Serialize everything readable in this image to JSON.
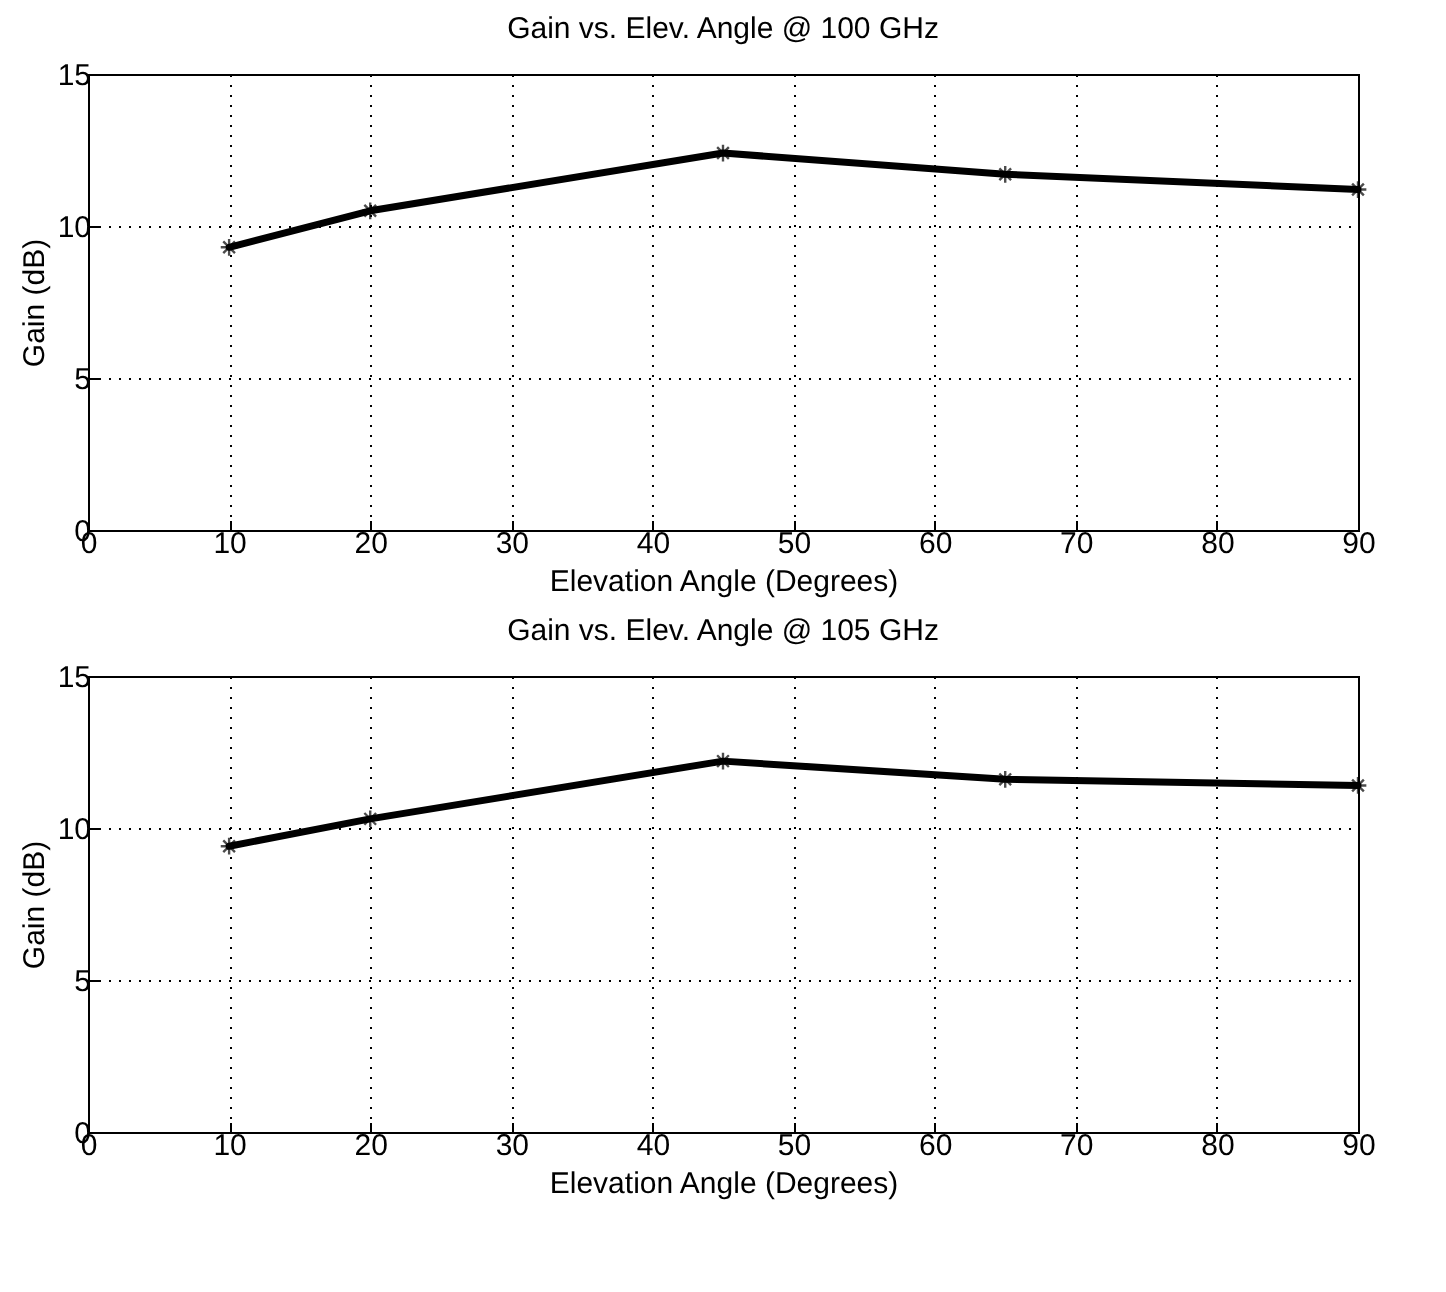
{
  "chart_data": [
    {
      "type": "line",
      "title": "Gain vs. Elev. Angle @ 100 GHz",
      "xlabel": "Elevation Angle (Degrees)",
      "ylabel": "Gain (dB)",
      "x": [
        10,
        20,
        45,
        65,
        90
      ],
      "series": [
        {
          "color": "#000000",
          "values": [
            9.3,
            10.5,
            12.4,
            11.7,
            11.2
          ]
        }
      ],
      "xlim": [
        0,
        90
      ],
      "xticks": [
        0,
        10,
        20,
        30,
        40,
        50,
        60,
        70,
        80,
        90
      ],
      "ylim": [
        0,
        15
      ],
      "yticks": [
        0,
        5,
        10,
        15
      ],
      "grid": true,
      "marker": "cross",
      "line_style": "solid",
      "legend": false
    },
    {
      "type": "line",
      "title": "Gain vs. Elev. Angle @ 105 GHz",
      "xlabel": "Elevation Angle (Degrees)",
      "ylabel": "Gain (dB)",
      "x": [
        10,
        20,
        45,
        65,
        90
      ],
      "series": [
        {
          "color": "#000000",
          "values": [
            9.4,
            10.3,
            12.2,
            11.6,
            11.4
          ]
        }
      ],
      "xlim": [
        0,
        90
      ],
      "xticks": [
        0,
        10,
        20,
        30,
        40,
        50,
        60,
        70,
        80,
        90
      ],
      "ylim": [
        0,
        15
      ],
      "yticks": [
        0,
        5,
        10,
        15
      ],
      "grid": true,
      "marker": "cross",
      "line_style": "solid",
      "legend": false
    }
  ]
}
